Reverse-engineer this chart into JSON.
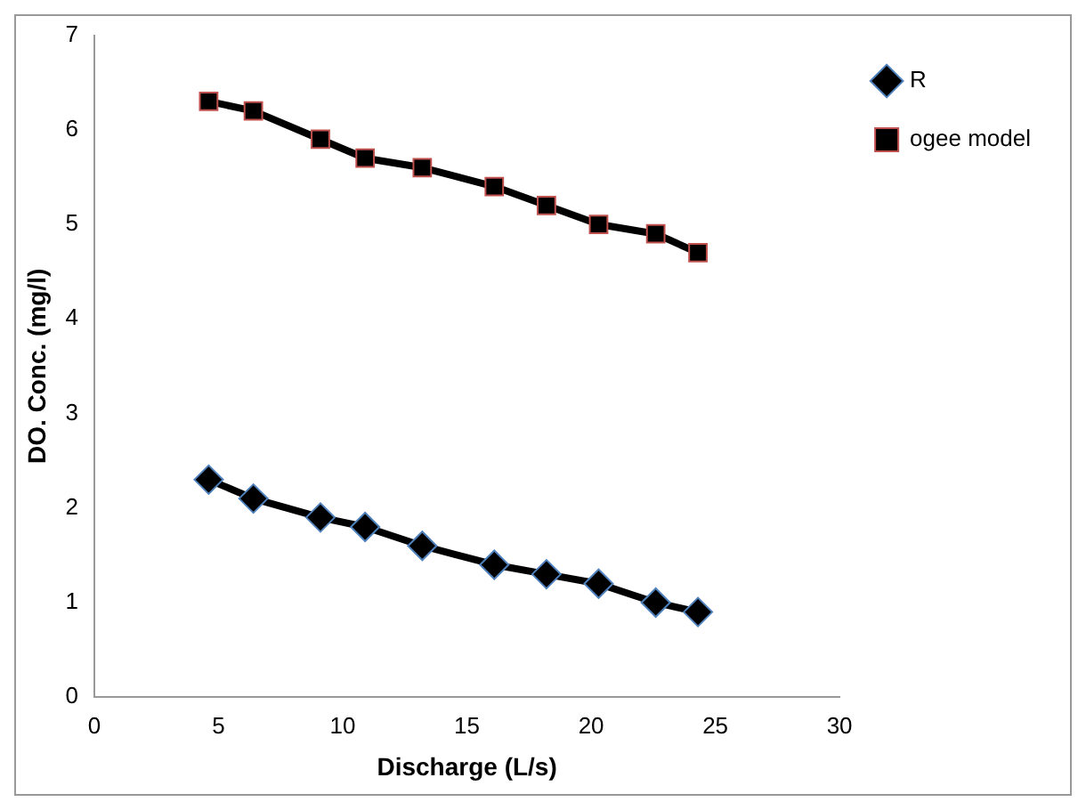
{
  "chart_data": {
    "type": "line",
    "xlabel": "Discharge (L/s)",
    "ylabel": "DO. Conc. (mg/l)",
    "x": [
      4.6,
      6.4,
      9.1,
      10.9,
      13.2,
      16.1,
      18.2,
      20.3,
      22.6,
      24.3
    ],
    "series": [
      {
        "name": "R",
        "color": "#000000",
        "marker": "diamond",
        "values": [
          2.3,
          2.1,
          1.9,
          1.8,
          1.6,
          1.4,
          1.3,
          1.2,
          1.0,
          0.9
        ]
      },
      {
        "name": "ogee model",
        "color": "#000000",
        "marker": "square",
        "values": [
          6.3,
          6.2,
          5.9,
          5.7,
          5.6,
          5.4,
          5.2,
          5.0,
          4.9,
          4.7
        ]
      }
    ],
    "xlim": [
      0,
      30
    ],
    "xticks": [
      0,
      5,
      10,
      15,
      20,
      25,
      30
    ],
    "ylim": [
      0,
      7
    ],
    "yticks": [
      0,
      1,
      2,
      3,
      4,
      5,
      6,
      7
    ],
    "grid": false,
    "legend": "right",
    "line_style": "solid"
  }
}
